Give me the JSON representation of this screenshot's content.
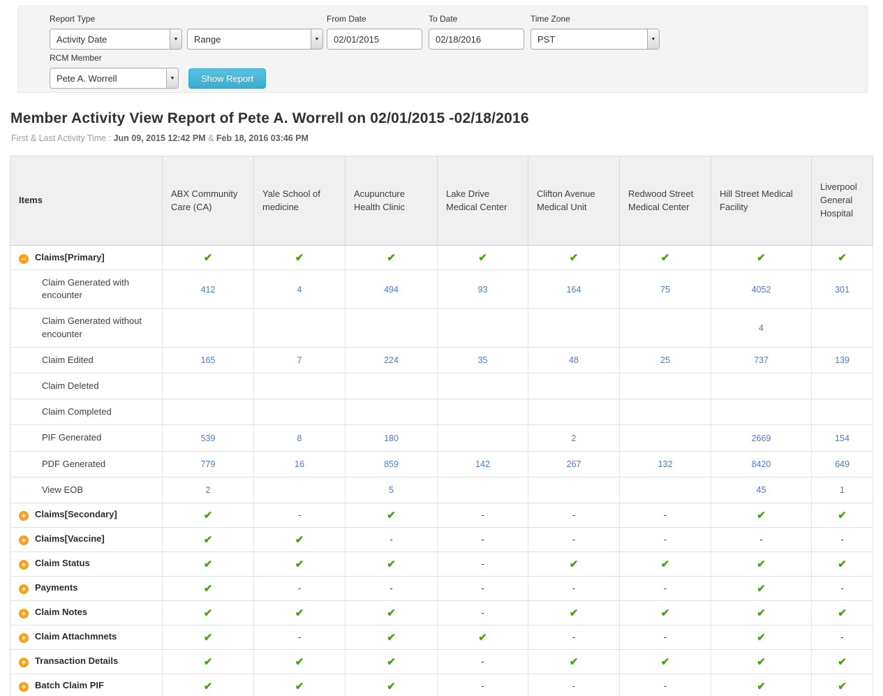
{
  "filters": {
    "report_type_label": "Report Type",
    "report_type_value": "Activity Date",
    "range_value": "Range",
    "from_date_label": "From Date",
    "from_date_value": "02/01/2015",
    "to_date_label": "To Date",
    "to_date_value": "02/18/2016",
    "time_zone_label": "Time Zone",
    "time_zone_value": "PST",
    "rcm_member_label": "RCM Member",
    "rcm_member_value": "Pete A. Worrell",
    "show_report_label": "Show Report"
  },
  "report": {
    "title": "Member Activity View Report of Pete A. Worrell on 02/01/2015 -02/18/2016",
    "activity_time_label": "First & Last Activity Time :",
    "first_activity": "Jun 09, 2015 12:42 PM",
    "activity_separator": "&",
    "last_activity": "Feb 18, 2016 03:46 PM"
  },
  "icons": {
    "dropdown_arrow": "▼",
    "check": "✔",
    "collapse": "−",
    "expand": "+",
    "dash": "-"
  },
  "colors": {
    "accent_button": "#45b6d6",
    "link_blue": "#4d79cc",
    "check_green": "#45a30d",
    "toggle_orange": "#f8a11b",
    "header_bg": "#f0f0f0"
  },
  "table": {
    "items_header": "Items",
    "columns": [
      "ABX Community Care (CA)",
      "Yale School of medicine",
      "Acupuncture Health Clinic",
      "Lake Drive Medical Center",
      "Clifton Avenue Medical Unit",
      "Redwood Street Medical Center",
      "Hill Street Medical Facility",
      "Liverpool General Hospital"
    ],
    "rows": [
      {
        "type": "group",
        "expanded": true,
        "label": "Claims[Primary]",
        "cells": [
          "check",
          "check",
          "check",
          "check",
          "check",
          "check",
          "check",
          "check"
        ]
      },
      {
        "type": "sub",
        "label": "Claim Generated with encounter",
        "cells": [
          "412",
          "4",
          "494",
          "93",
          "164",
          "75",
          "4052",
          "301"
        ]
      },
      {
        "type": "sub",
        "label": "Claim Generated without encounter",
        "cells": [
          "",
          "",
          "",
          "",
          "",
          "",
          "4",
          ""
        ]
      },
      {
        "type": "sub",
        "label": "Claim Edited",
        "cells": [
          "165",
          "7",
          "224",
          "35",
          "48",
          "25",
          "737",
          "139"
        ]
      },
      {
        "type": "sub",
        "label": "Claim Deleted",
        "cells": [
          "",
          "",
          "",
          "",
          "",
          "",
          "",
          ""
        ]
      },
      {
        "type": "sub",
        "label": "Claim Completed",
        "cells": [
          "",
          "",
          "",
          "",
          "",
          "",
          "",
          ""
        ]
      },
      {
        "type": "sub",
        "label": "PIF Generated",
        "cells": [
          "539",
          "8",
          "180",
          "",
          "2",
          "",
          "2669",
          "154"
        ]
      },
      {
        "type": "sub",
        "label": "PDF Generated",
        "cells": [
          "779",
          "16",
          "859",
          "142",
          "267",
          "132",
          "8420",
          "649"
        ]
      },
      {
        "type": "sub",
        "label": "View EOB",
        "cells": [
          "2",
          "",
          "5",
          "",
          "",
          "",
          "45",
          "1"
        ]
      },
      {
        "type": "group",
        "expanded": false,
        "label": "Claims[Secondary]",
        "cells": [
          "check",
          "-",
          "check",
          "-",
          "-",
          "-",
          "check",
          "check"
        ]
      },
      {
        "type": "group",
        "expanded": false,
        "label": "Claims[Vaccine]",
        "cells": [
          "check",
          "check",
          "-",
          "-",
          "-",
          "-",
          "-",
          "-"
        ]
      },
      {
        "type": "group",
        "expanded": false,
        "label": "Claim Status",
        "cells": [
          "check",
          "check",
          "check",
          "-",
          "check",
          "check",
          "check",
          "check"
        ]
      },
      {
        "type": "group",
        "expanded": false,
        "label": "Payments",
        "cells": [
          "check",
          "-",
          "-",
          "-",
          "-",
          "-",
          "check",
          "-"
        ]
      },
      {
        "type": "group",
        "expanded": false,
        "label": "Claim Notes",
        "cells": [
          "check",
          "check",
          "check",
          "-",
          "check",
          "check",
          "check",
          "check"
        ]
      },
      {
        "type": "group",
        "expanded": false,
        "label": "Claim Attachmnets",
        "cells": [
          "check",
          "-",
          "check",
          "check",
          "-",
          "-",
          "check",
          "-"
        ]
      },
      {
        "type": "group",
        "expanded": false,
        "label": "Transaction Details",
        "cells": [
          "check",
          "check",
          "check",
          "-",
          "check",
          "check",
          "check",
          "check"
        ]
      },
      {
        "type": "group",
        "expanded": false,
        "label": "Batch Claim PIF",
        "cells": [
          "check",
          "check",
          "check",
          "-",
          "-",
          "-",
          "check",
          "check"
        ]
      }
    ]
  }
}
